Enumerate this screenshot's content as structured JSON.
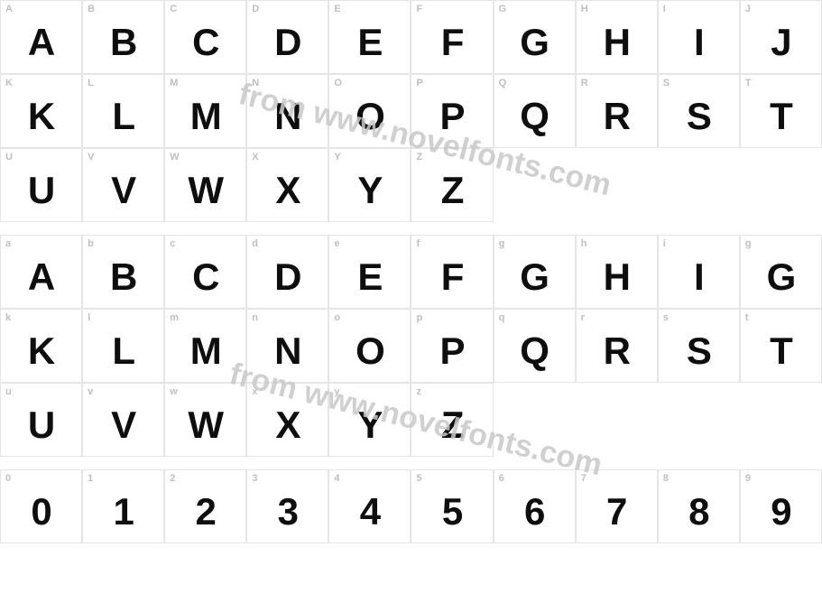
{
  "watermark_text": "from www.novelfonts.com",
  "colors": {
    "border": "#e5e5e5",
    "label": "#bfbfbf",
    "glyph": "#0e0e0e",
    "watermark": "#c8c8c8",
    "background": "#ffffff"
  },
  "rows": [
    [
      {
        "label": "A",
        "glyph": "A"
      },
      {
        "label": "B",
        "glyph": "B"
      },
      {
        "label": "C",
        "glyph": "C"
      },
      {
        "label": "D",
        "glyph": "D"
      },
      {
        "label": "E",
        "glyph": "E"
      },
      {
        "label": "F",
        "glyph": "F"
      },
      {
        "label": "G",
        "glyph": "G"
      },
      {
        "label": "H",
        "glyph": "H"
      },
      {
        "label": "I",
        "glyph": "I"
      },
      {
        "label": "J",
        "glyph": "J"
      }
    ],
    [
      {
        "label": "K",
        "glyph": "K"
      },
      {
        "label": "L",
        "glyph": "L"
      },
      {
        "label": "M",
        "glyph": "M"
      },
      {
        "label": "N",
        "glyph": "N"
      },
      {
        "label": "O",
        "glyph": "O"
      },
      {
        "label": "P",
        "glyph": "P"
      },
      {
        "label": "Q",
        "glyph": "Q"
      },
      {
        "label": "R",
        "glyph": "R"
      },
      {
        "label": "S",
        "glyph": "S"
      },
      {
        "label": "T",
        "glyph": "T"
      }
    ],
    [
      {
        "label": "U",
        "glyph": "U"
      },
      {
        "label": "V",
        "glyph": "V"
      },
      {
        "label": "W",
        "glyph": "W"
      },
      {
        "label": "X",
        "glyph": "X"
      },
      {
        "label": "Y",
        "glyph": "Y"
      },
      {
        "label": "Z",
        "glyph": "Z"
      },
      {
        "label": "",
        "glyph": ""
      },
      {
        "label": "",
        "glyph": ""
      },
      {
        "label": "",
        "glyph": ""
      },
      {
        "label": "",
        "glyph": ""
      }
    ],
    "spacer",
    [
      {
        "label": "a",
        "glyph": "A"
      },
      {
        "label": "b",
        "glyph": "B"
      },
      {
        "label": "c",
        "glyph": "C"
      },
      {
        "label": "d",
        "glyph": "D"
      },
      {
        "label": "e",
        "glyph": "E"
      },
      {
        "label": "f",
        "glyph": "F"
      },
      {
        "label": "g",
        "glyph": "G"
      },
      {
        "label": "h",
        "glyph": "H"
      },
      {
        "label": "i",
        "glyph": "I"
      },
      {
        "label": "g",
        "glyph": "G"
      }
    ],
    [
      {
        "label": "k",
        "glyph": "K"
      },
      {
        "label": "l",
        "glyph": "L"
      },
      {
        "label": "m",
        "glyph": "M"
      },
      {
        "label": "n",
        "glyph": "N"
      },
      {
        "label": "o",
        "glyph": "O"
      },
      {
        "label": "p",
        "glyph": "P"
      },
      {
        "label": "q",
        "glyph": "Q"
      },
      {
        "label": "r",
        "glyph": "R"
      },
      {
        "label": "s",
        "glyph": "S"
      },
      {
        "label": "t",
        "glyph": "T"
      }
    ],
    [
      {
        "label": "u",
        "glyph": "U"
      },
      {
        "label": "v",
        "glyph": "V"
      },
      {
        "label": "w",
        "glyph": "W"
      },
      {
        "label": "x",
        "glyph": "X"
      },
      {
        "label": "y",
        "glyph": "Y"
      },
      {
        "label": "z",
        "glyph": "Z"
      },
      {
        "label": "",
        "glyph": ""
      },
      {
        "label": "",
        "glyph": ""
      },
      {
        "label": "",
        "glyph": ""
      },
      {
        "label": "",
        "glyph": ""
      }
    ],
    "spacer",
    [
      {
        "label": "0",
        "glyph": "0"
      },
      {
        "label": "1",
        "glyph": "1"
      },
      {
        "label": "2",
        "glyph": "2"
      },
      {
        "label": "3",
        "glyph": "3"
      },
      {
        "label": "4",
        "glyph": "4"
      },
      {
        "label": "5",
        "glyph": "5"
      },
      {
        "label": "6",
        "glyph": "6"
      },
      {
        "label": "7",
        "glyph": "7"
      },
      {
        "label": "8",
        "glyph": "8"
      },
      {
        "label": "9",
        "glyph": "9"
      }
    ]
  ]
}
